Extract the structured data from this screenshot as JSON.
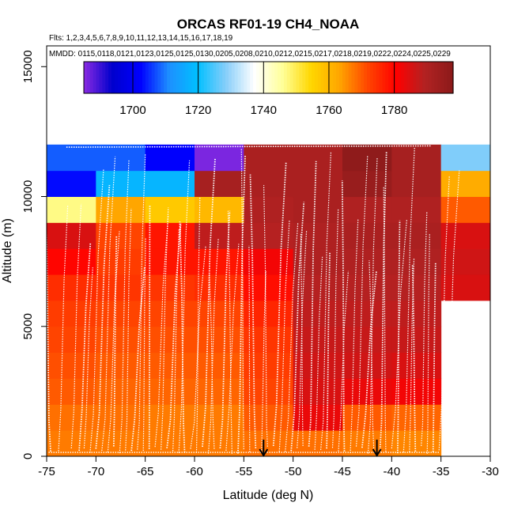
{
  "chart_data": {
    "type": "heatmap",
    "title": "ORCAS RF01-19 CH4_NOAA",
    "subtitle_flights": "Flts: 1,2,3,4,5,6,7,8,9,10,11,12,13,14,15,16,17,18,19",
    "subtitle_dates": "MMDD: 0115,0118,0121,0123,0125,0125,0130,0205,0208,0210,0212,0215,0217,0218,0219,0222,0224,0225,0229",
    "xlabel": "Latitude (deg N)",
    "ylabel": "Altitude (m)",
    "xlim": [
      -75,
      -30
    ],
    "ylim": [
      0,
      15800
    ],
    "x_ticks": [
      -75,
      -70,
      -65,
      -60,
      -55,
      -50,
      -45,
      -40,
      -35,
      -30
    ],
    "x_tick_labels": [
      "-75",
      "-70",
      "-65",
      "-60",
      "-55",
      "-50",
      "-45",
      "-40",
      "-35",
      "-30"
    ],
    "y_ticks": [
      0,
      5000,
      10000,
      15000
    ],
    "y_tick_labels": [
      "0",
      "5000",
      "10000",
      "15000"
    ],
    "colorbar": {
      "min": 1685,
      "max": 1798,
      "ticks": [
        1700,
        1720,
        1740,
        1760,
        1780
      ],
      "tick_labels": [
        "1700",
        "1720",
        "1740",
        "1760",
        "1780"
      ],
      "colors": [
        "#8b2be2",
        "#0000cd",
        "#0000ff",
        "#1e90ff",
        "#00bfff",
        "#87cefa",
        "#ffffff",
        "#ffff99",
        "#ffd700",
        "#ffa500",
        "#ff4500",
        "#ff0000",
        "#b22222",
        "#8b1a1a"
      ]
    },
    "grid_lon_edges": [
      -75,
      -70,
      -65,
      -60,
      -55,
      -50,
      -45,
      -40,
      -35,
      -30
    ],
    "grid_alt_edges": [
      0,
      1000,
      2000,
      3000,
      4000,
      5000,
      6000,
      7000,
      8000,
      9000,
      10000,
      11000,
      12000
    ],
    "grid_values": [
      [
        1767,
        1767,
        1767,
        1767,
        1768,
        1768,
        1767,
        1766,
        null
      ],
      [
        1768,
        1768,
        1767,
        1767,
        1770,
        1783,
        1770,
        1769,
        null
      ],
      [
        1770,
        1769,
        1769,
        1769,
        1772,
        1785,
        1783,
        1782,
        null
      ],
      [
        1771,
        1770,
        1770,
        1770,
        1773,
        1786,
        1786,
        1785,
        null
      ],
      [
        1772,
        1771,
        1771,
        1771,
        1774,
        1787,
        1787,
        1787,
        null
      ],
      [
        1773,
        1772,
        1772,
        1772,
        1776,
        1788,
        1788,
        1788,
        null
      ],
      [
        1775,
        1774,
        1774,
        1775,
        1779,
        1789,
        1789,
        1789,
        1785
      ],
      [
        1780,
        1773,
        1778,
        1778,
        1782,
        1790,
        1790,
        1790,
        1786
      ],
      [
        1785,
        1772,
        1778,
        1788,
        1789,
        1790,
        1791,
        1791,
        1785
      ],
      [
        1747,
        1763,
        1757,
        1760,
        1790,
        1791,
        1790,
        1790,
        1770
      ],
      [
        1703,
        1718,
        1718,
        1792,
        1791,
        1791,
        1795,
        1792,
        1762
      ],
      [
        1708,
        1708,
        1702,
        1686,
        1791,
        1791,
        1797,
        1792,
        1728
      ]
    ],
    "arrow_latitudes": [
      -53,
      -41.5
    ],
    "profile_latitudes": [
      -74.6,
      -73.8,
      -72.5,
      -71.7,
      -71.2,
      -70.6,
      -70.0,
      -69.4,
      -68.8,
      -68.2,
      -67.6,
      -67.0,
      -66.4,
      -65.8,
      -65.2,
      -64.6,
      -64.0,
      -63.4,
      -62.8,
      -62.2,
      -61.6,
      -61.0,
      -60.4,
      -59.8,
      -59.2,
      -58.6,
      -58.0,
      -57.4,
      -56.8,
      -56.2,
      -55.6,
      -55.0,
      -54.4,
      -53.8,
      -53.2,
      -52.6,
      -52.0,
      -51.4,
      -50.8,
      -50.2,
      -49.6,
      -49.0,
      -48.4,
      -47.8,
      -47.2,
      -46.6,
      -46.0,
      -45.4,
      -44.8,
      -44.2,
      -43.6,
      -43.0,
      -42.4,
      -41.8,
      -41.2,
      -40.6,
      -40.0,
      -39.4,
      -38.8,
      -38.2,
      -37.6,
      -37.0,
      -36.4,
      -35.8,
      -35.2,
      -34.6
    ]
  }
}
